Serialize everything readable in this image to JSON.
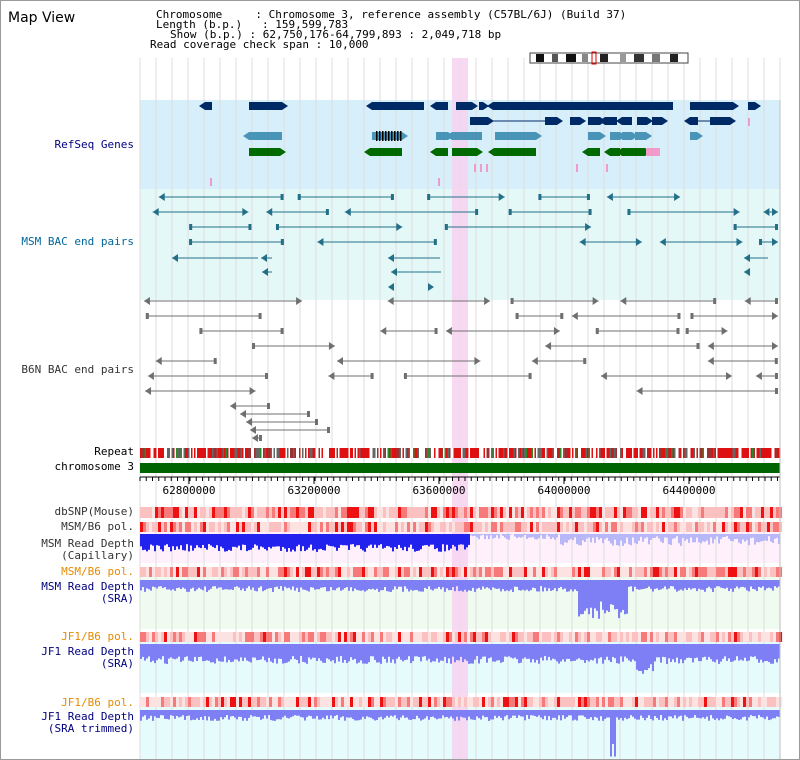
{
  "title": "Map View",
  "info": {
    "chromosome_label": "Chromosome     ",
    "chromosome_value": ": Chromosome 3, reference assembly (C57BL/6J) (Build 37)",
    "length_label": "Length (b.p.) ",
    "length_value": ": 159,599,783",
    "show_label": "Show (b.p.) ",
    "show_value": ": 62,750,176-64,799,893 : 2,049,718 bp",
    "coverage_label": "Read coverage check span",
    "coverage_value": ": 10,000"
  },
  "tracks": {
    "refseq": "RefSeq Genes",
    "msm_bac": "MSM BAC end pairs",
    "b6n_bac": "B6N BAC end pairs",
    "repeat": "Repeat",
    "chromosome": "chromosome 3",
    "dbsnp": "dbSNP(Mouse)",
    "msm_pol_1": "MSM/B6 pol.",
    "msm_depth_cap_1": "MSM Read Depth",
    "msm_depth_cap_2": "(Capillary)",
    "msm_pol_2": "MSM/B6 pol.",
    "msm_depth_sra_1": "MSM Read Depth",
    "msm_depth_sra_2": "(SRA)",
    "jf1_pol_1": "JF1/B6 pol.",
    "jf1_depth_sra_1": "JF1 Read Depth",
    "jf1_depth_sra_2": "(SRA)",
    "jf1_pol_2": "JF1/B6 pol.",
    "jf1_depth_trim_1": "JF1 Read Depth",
    "jf1_depth_trim_2": "(SRA trimmed)"
  },
  "axis": {
    "range_bp": [
      62750176,
      64799893
    ],
    "ticks": [
      "62800000",
      "63200000",
      "63600000",
      "64000000",
      "64400000"
    ]
  },
  "colors": {
    "navy_label": "#000080",
    "teal_label": "#006699",
    "gray_label": "#333333",
    "orange_label": "#e68a00",
    "highlight": "#f7d2f0",
    "refseq_bg": "#d6effa",
    "msm_bg": "#e4f8f8",
    "gene_navy": "#002a66",
    "gene_teal": "#4a94b8",
    "gene_green": "#006a00",
    "gene_pink": "#f29ac8",
    "bac_teal": "#236f88",
    "bac_gray": "#6f6f6f",
    "chrom_green": "#006400",
    "depth_blue": "#2222ee",
    "depth_light": "#7f7ff5"
  },
  "icons": {
    "ideogram": "chromosome-ideogram-icon"
  }
}
